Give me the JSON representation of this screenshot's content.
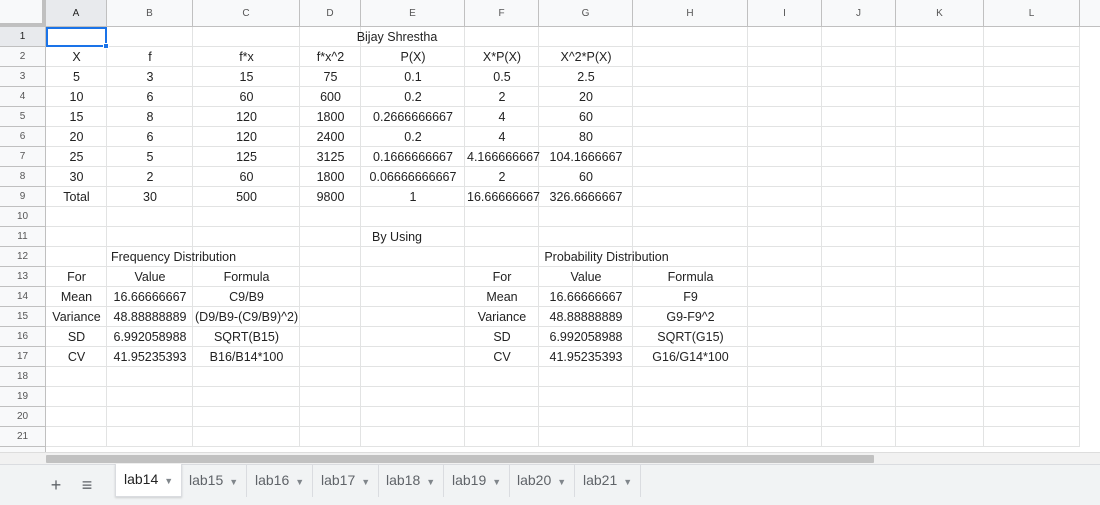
{
  "columns": [
    "A",
    "B",
    "C",
    "D",
    "E",
    "F",
    "G",
    "H",
    "I",
    "J",
    "K",
    "L"
  ],
  "rows": [
    "1",
    "2",
    "3",
    "4",
    "5",
    "6",
    "7",
    "8",
    "9",
    "10",
    "11",
    "12",
    "13",
    "14",
    "15",
    "16",
    "17",
    "18",
    "19",
    "20",
    "21"
  ],
  "cells": {
    "title": "Bijay Shrestha",
    "header": [
      "X",
      "f",
      "f*x",
      "f*x^2",
      "P(X)",
      "X*P(X)",
      "X^2*P(X)"
    ],
    "data": [
      [
        "5",
        "3",
        "15",
        "75",
        "0.1",
        "0.5",
        "2.5"
      ],
      [
        "10",
        "6",
        "60",
        "600",
        "0.2",
        "2",
        "20"
      ],
      [
        "15",
        "8",
        "120",
        "1800",
        "0.2666666667",
        "4",
        "60"
      ],
      [
        "20",
        "6",
        "120",
        "2400",
        "0.2",
        "4",
        "80"
      ],
      [
        "25",
        "5",
        "125",
        "3125",
        "0.1666666667",
        "4.166666667",
        "104.1666667"
      ],
      [
        "30",
        "2",
        "60",
        "1800",
        "0.06666666667",
        "2",
        "60"
      ]
    ],
    "total": [
      "Total",
      "30",
      "500",
      "9800",
      "1",
      "16.66666667",
      "326.6666667"
    ],
    "by_using": "By Using",
    "freq_title": "Frequency Distribution",
    "prob_title": "Probability Distribution",
    "stat_headers": [
      "For",
      "Value",
      "Formula"
    ],
    "freq_rows": [
      [
        "Mean",
        "16.66666667",
        "C9/B9"
      ],
      [
        "Variance",
        "48.88888889",
        "(D9/B9-(C9/B9)^2)"
      ],
      [
        "SD",
        "6.992058988",
        "SQRT(B15)"
      ],
      [
        "CV",
        "41.95235393",
        "B16/B14*100"
      ]
    ],
    "prob_rows": [
      [
        "Mean",
        "16.66666667",
        "F9"
      ],
      [
        "Variance",
        "48.88888889",
        "G9-F9^2"
      ],
      [
        "SD",
        "6.992058988",
        "SQRT(G15)"
      ],
      [
        "CV",
        "41.95235393",
        "G16/G14*100"
      ]
    ]
  },
  "toolbar": {
    "add_icon": "plus-icon",
    "list_icon": "sheet-list-icon"
  },
  "tabs": [
    {
      "label": "lab14",
      "active": true
    },
    {
      "label": "lab15",
      "active": false
    },
    {
      "label": "lab16",
      "active": false
    },
    {
      "label": "lab17",
      "active": false
    },
    {
      "label": "lab18",
      "active": false
    },
    {
      "label": "lab19",
      "active": false
    },
    {
      "label": "lab20",
      "active": false
    },
    {
      "label": "lab21",
      "active": false
    }
  ],
  "colors": {
    "selection": "#1a73e8",
    "header_bg": "#f8f9fa",
    "grid": "#e2e3e3"
  }
}
